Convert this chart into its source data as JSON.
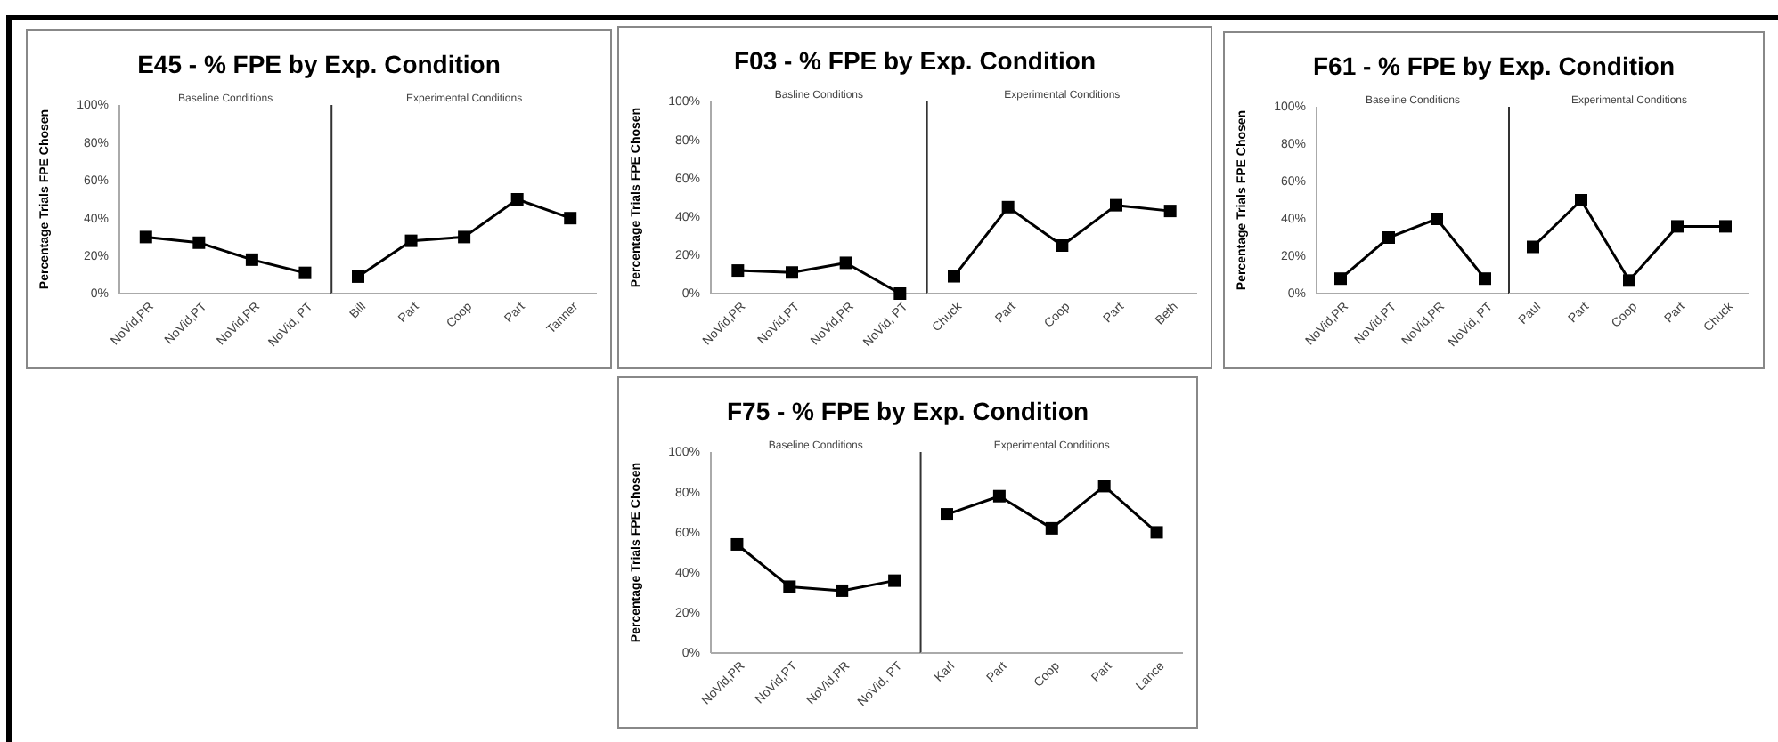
{
  "chart_data": [
    {
      "type": "line",
      "title": "E45 - % FPE by Exp. Condition",
      "ylabel": "Percentage Trials FPE Chosen",
      "categories": [
        "NoVid,PR",
        "NoVid,PT",
        "NoVid,PR",
        "NoVid, PT"
      ],
      "series": [
        {
          "color": "#000000",
          "values": [
            30,
            27,
            18,
            11
          ]
        }
      ],
      "ylim": [
        0,
        100
      ],
      "yticks": [
        {
          "value": 0,
          "label": "0%"
        },
        {
          "value": 20,
          "label": "20%"
        },
        {
          "value": 40,
          "label": "40%"
        },
        {
          "value": 60,
          "label": "60%"
        },
        {
          "value": 80,
          "label": "80%"
        },
        {
          "value": 100,
          "label": "100%"
        }
      ],
      "marker": "square",
      "line_style": "solid",
      "annotations": [
        "Baseline Conditions"
      ]
    },
    {
      "type": "line",
      "categories": [
        "Bill",
        "Part",
        "Coop",
        "Part",
        "Tanner"
      ],
      "series": [
        {
          "color": "#000000",
          "values": [
            9,
            28,
            30,
            50,
            40
          ]
        }
      ],
      "ylim": [
        0,
        100
      ],
      "tick_labels": "x",
      "marker": "square",
      "line_style": "solid",
      "annotations": [
        "Experimental Conditions"
      ]
    },
    {
      "type": "line",
      "title": "F03 - % FPE by Exp. Condition",
      "ylabel": "Percentage Trials FPE Chosen",
      "categories": [
        "NoVid,PR",
        "NoVid,PT",
        "NoVid,PR",
        "NoVid, PT"
      ],
      "series": [
        {
          "color": "#000000",
          "values": [
            12,
            11,
            16,
            0
          ]
        }
      ],
      "ylim": [
        0,
        100
      ],
      "yticks": [
        {
          "value": 0,
          "label": "0%"
        },
        {
          "value": 20,
          "label": "20%"
        },
        {
          "value": 40,
          "label": "40%"
        },
        {
          "value": 60,
          "label": "60%"
        },
        {
          "value": 80,
          "label": "80%"
        },
        {
          "value": 100,
          "label": "100%"
        }
      ],
      "marker": "square",
      "line_style": "solid",
      "annotations": [
        "Basline Conditions"
      ]
    },
    {
      "type": "line",
      "categories": [
        "Chuck",
        "Part",
        "Coop",
        "Part",
        "Beth"
      ],
      "series": [
        {
          "color": "#000000",
          "values": [
            9,
            45,
            25,
            46,
            43
          ]
        }
      ],
      "ylim": [
        0,
        100
      ],
      "tick_labels": "x",
      "marker": "square",
      "line_style": "solid",
      "annotations": [
        "Experimental Conditions"
      ]
    },
    {
      "type": "line",
      "title": "F61 - % FPE by Exp. Condition",
      "ylabel": "Percentage Trials FPE Chosen",
      "categories": [
        "NoVid,PR",
        "NoVid,PT",
        "NoVid,PR",
        "NoVid, PT"
      ],
      "series": [
        {
          "color": "#000000",
          "values": [
            8,
            30,
            40,
            8
          ]
        }
      ],
      "ylim": [
        0,
        100
      ],
      "yticks": [
        {
          "value": 0,
          "label": "0%"
        },
        {
          "value": 20,
          "label": "20%"
        },
        {
          "value": 40,
          "label": "40%"
        },
        {
          "value": 60,
          "label": "60%"
        },
        {
          "value": 80,
          "label": "80%"
        },
        {
          "value": 100,
          "label": "100%"
        }
      ],
      "marker": "square",
      "line_style": "solid",
      "annotations": [
        "Baseline Conditions"
      ]
    },
    {
      "type": "line",
      "categories": [
        "Paul",
        "Part",
        "Coop",
        "Part",
        "Chuck"
      ],
      "series": [
        {
          "color": "#000000",
          "values": [
            25,
            50,
            7,
            36,
            36
          ]
        }
      ],
      "ylim": [
        0,
        100
      ],
      "tick_labels": "x",
      "marker": "square",
      "line_style": "solid",
      "annotations": [
        "Experimental Conditions"
      ]
    },
    {
      "type": "line",
      "title": "F75 - % FPE by Exp. Condition",
      "ylabel": "Percentage Trials FPE Chosen",
      "categories": [
        "NoVid,PR",
        "NoVid,PT",
        "NoVid,PR",
        "NoVid, PT"
      ],
      "series": [
        {
          "color": "#000000",
          "values": [
            54,
            33,
            31,
            36
          ]
        }
      ],
      "ylim": [
        0,
        100
      ],
      "yticks": [
        {
          "value": 0,
          "label": "0%"
        },
        {
          "value": 20,
          "label": "20%"
        },
        {
          "value": 40,
          "label": "40%"
        },
        {
          "value": 60,
          "label": "60%"
        },
        {
          "value": 80,
          "label": "80%"
        },
        {
          "value": 100,
          "label": "100%"
        }
      ],
      "marker": "square",
      "line_style": "solid",
      "annotations": [
        "Baseline Conditions"
      ]
    },
    {
      "type": "line",
      "categories": [
        "Karl",
        "Part",
        "Coop",
        "Part",
        "Lance"
      ],
      "series": [
        {
          "color": "#000000",
          "values": [
            69,
            78,
            62,
            83,
            60
          ]
        }
      ],
      "ylim": [
        0,
        100
      ],
      "tick_labels": "x",
      "marker": "square",
      "line_style": "solid",
      "annotations": [
        "Experimental Conditions"
      ]
    }
  ]
}
